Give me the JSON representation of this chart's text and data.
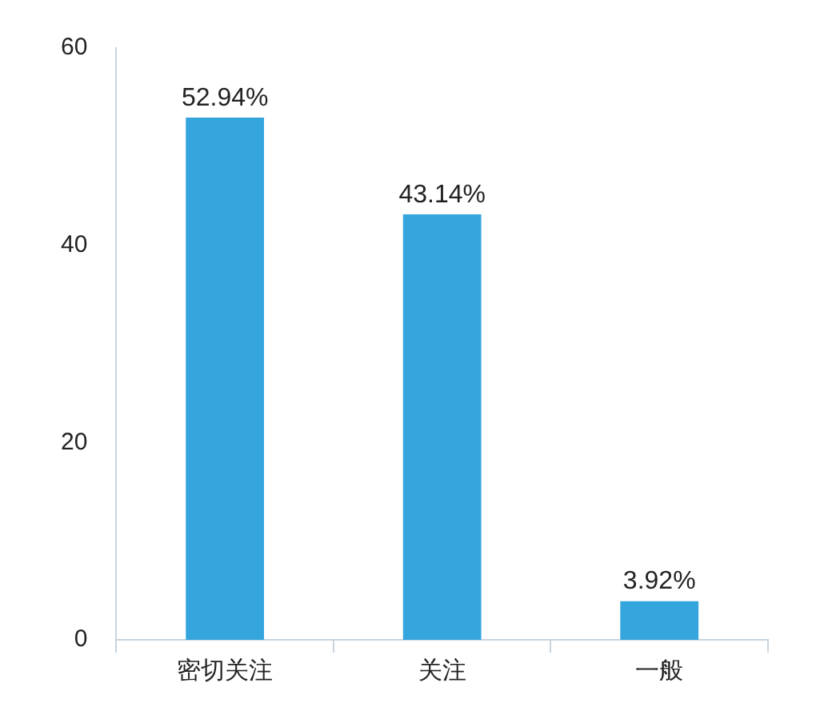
{
  "chart_data": {
    "type": "bar",
    "categories": [
      "密切关注",
      "关注",
      "一般"
    ],
    "values": [
      52.94,
      43.14,
      3.92
    ],
    "value_labels": [
      "52.94%",
      "43.14%",
      "3.92%"
    ],
    "color": "#35a5de",
    "ylim": [
      0,
      60
    ],
    "yticks": [
      0,
      20,
      40,
      60
    ],
    "grid": false,
    "legend": false
  }
}
